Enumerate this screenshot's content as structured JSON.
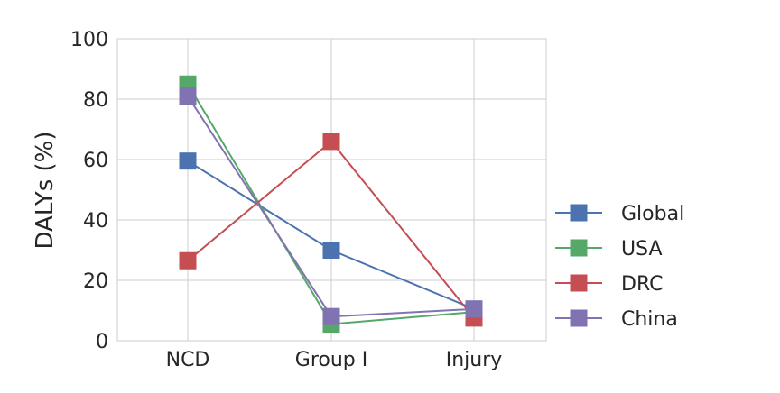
{
  "chart_data": {
    "type": "line",
    "title": "",
    "xlabel": "",
    "ylabel": "DALYs (%)",
    "categories": [
      "NCD",
      "Group I",
      "Injury"
    ],
    "ylim": [
      0,
      100
    ],
    "yticks": [
      "0",
      "20",
      "40",
      "60",
      "80",
      "100"
    ],
    "grid": true,
    "legend_position": "right",
    "series": [
      {
        "name": "Global",
        "color": "#4c72b0",
        "values": [
          59.5,
          30,
          10.5
        ]
      },
      {
        "name": "USA",
        "color": "#55a868",
        "values": [
          85,
          5.5,
          9.5
        ]
      },
      {
        "name": "DRC",
        "color": "#c44e52",
        "values": [
          26.5,
          66,
          7.5
        ]
      },
      {
        "name": "China",
        "color": "#8172b2",
        "values": [
          81,
          8,
          10.5
        ]
      }
    ]
  }
}
